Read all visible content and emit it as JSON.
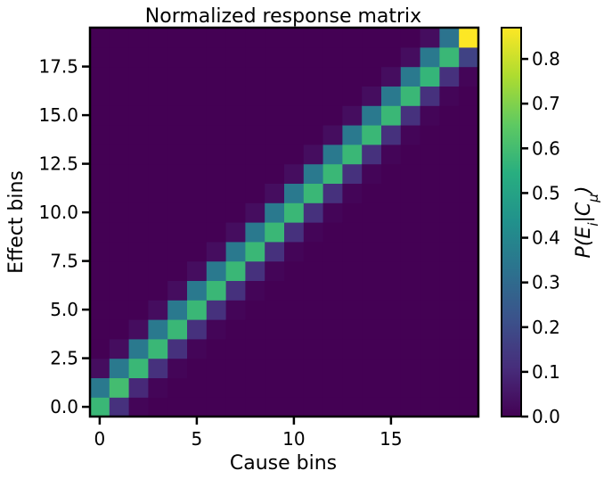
{
  "chart_data": {
    "type": "heatmap",
    "title": "Normalized response matrix",
    "xlabel": "Cause bins",
    "ylabel": "Effect bins",
    "n_bins": 20,
    "xlim": [
      -0.5,
      19.5
    ],
    "ylim": [
      -0.5,
      19.5
    ],
    "x_ticks": [
      0,
      5,
      10,
      15
    ],
    "x_tick_labels": [
      "0",
      "5",
      "10",
      "15"
    ],
    "y_ticks": [
      0,
      2.5,
      5,
      7.5,
      10,
      12.5,
      15,
      17.5
    ],
    "y_tick_labels": [
      "0.0",
      "2.5",
      "5.0",
      "7.5",
      "10.0",
      "12.5",
      "15.0",
      "17.5"
    ],
    "colormap": "viridis",
    "colorbar": {
      "label": "P(E_i|C_μ)",
      "label_parts": {
        "p": "P(",
        "e": "E",
        "i": "i",
        "bar": "|",
        "c": "C",
        "mu": "μ",
        "close": ")"
      },
      "range": [
        0.0,
        0.87
      ],
      "ticks": [
        0.0,
        0.1,
        0.2,
        0.3,
        0.4,
        0.5,
        0.6,
        0.7,
        0.8
      ],
      "tick_labels": [
        "0.0",
        "0.1",
        "0.2",
        "0.3",
        "0.4",
        "0.5",
        "0.6",
        "0.7",
        "0.8"
      ]
    },
    "band_values": {
      "diagonal": [
        0.58,
        0.6,
        0.58,
        0.58,
        0.58,
        0.58,
        0.58,
        0.58,
        0.58,
        0.58,
        0.58,
        0.58,
        0.58,
        0.58,
        0.58,
        0.58,
        0.58,
        0.57,
        0.58,
        0.87
      ],
      "above_diagonal_1": [
        0.35,
        0.35,
        0.35,
        0.35,
        0.35,
        0.35,
        0.35,
        0.35,
        0.35,
        0.35,
        0.35,
        0.35,
        0.35,
        0.35,
        0.35,
        0.35,
        0.35,
        0.35,
        0.33
      ],
      "below_diagonal_1": [
        0.12,
        0.1,
        0.12,
        0.12,
        0.12,
        0.12,
        0.12,
        0.12,
        0.12,
        0.12,
        0.12,
        0.12,
        0.12,
        0.12,
        0.12,
        0.12,
        0.12,
        0.12,
        0.17
      ],
      "above_diagonal_2": [
        0.03,
        0.03,
        0.03,
        0.03,
        0.03,
        0.03,
        0.03,
        0.03,
        0.03,
        0.03,
        0.03,
        0.03,
        0.03,
        0.03,
        0.03,
        0.03,
        0.03,
        0.03
      ],
      "below_diagonal_2": [
        0.01,
        0.01,
        0.01,
        0.01,
        0.01,
        0.01,
        0.01,
        0.01,
        0.01,
        0.01,
        0.01,
        0.01,
        0.01,
        0.01,
        0.01,
        0.01,
        0.01,
        0.01
      ],
      "other": 0.0
    }
  }
}
